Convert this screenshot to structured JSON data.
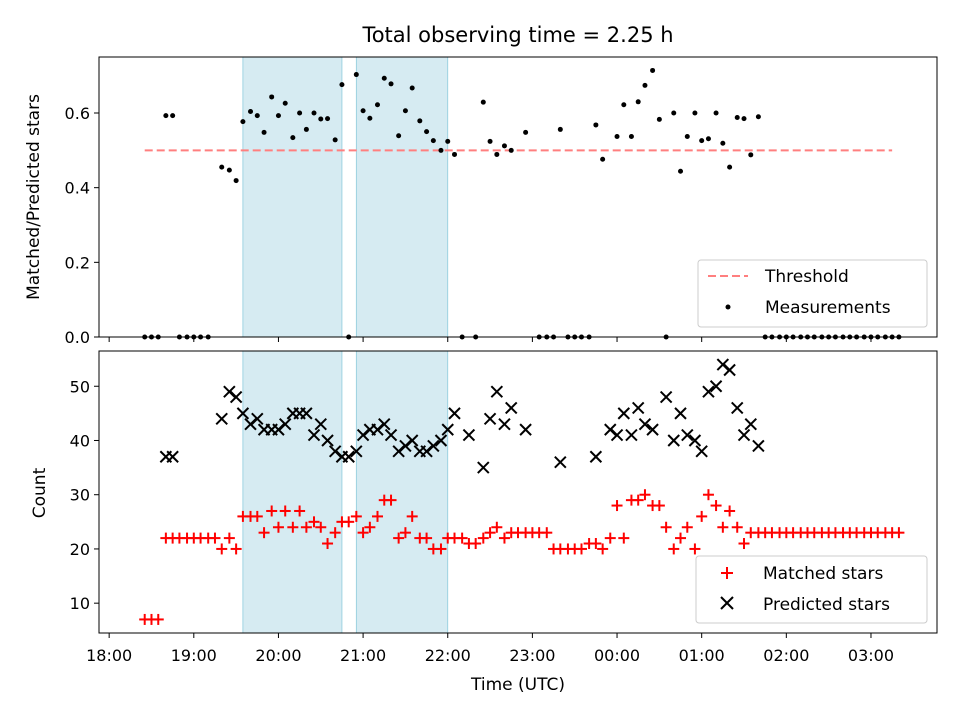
{
  "chart_data": [
    {
      "type": "scatter",
      "title": "Total observing time = 2.25 h",
      "ylabel": "Matched/Predicted stars",
      "xlabel": "",
      "xlim_hours": [
        17.88,
        27.78
      ],
      "ylim": [
        0,
        0.75
      ],
      "yticks": [
        0.0,
        0.2,
        0.4,
        0.6
      ],
      "ytick_labels": [
        "0.0",
        "0.2",
        "0.4",
        "0.6"
      ],
      "shaded_intervals": [
        [
          19.58,
          20.75
        ],
        [
          20.92,
          22.0
        ]
      ],
      "threshold": {
        "name": "Threshold",
        "y": 0.5,
        "x_from": 18.42,
        "x_to": 27.25,
        "color": "#ff7f7f"
      },
      "legend": {
        "position": "lower right",
        "entries": [
          "Threshold",
          "Measurements"
        ]
      },
      "series": [
        {
          "name": "Measurements",
          "color": "#000000",
          "x": [
            18.42,
            18.5,
            18.58,
            18.67,
            18.75,
            18.83,
            18.92,
            19.0,
            19.08,
            19.17,
            19.33,
            19.42,
            19.5,
            19.58,
            19.67,
            19.75,
            19.83,
            19.92,
            20.0,
            20.08,
            20.17,
            20.25,
            20.33,
            20.42,
            20.5,
            20.58,
            20.67,
            20.75,
            20.83,
            20.92,
            21.0,
            21.08,
            21.17,
            21.25,
            21.33,
            21.42,
            21.5,
            21.58,
            21.67,
            21.75,
            21.83,
            21.92,
            22.0,
            22.08,
            22.17,
            22.33,
            22.42,
            22.5,
            22.58,
            22.67,
            22.75,
            22.92,
            23.08,
            23.17,
            23.25,
            23.33,
            23.42,
            23.5,
            23.58,
            23.67,
            23.75,
            23.83,
            24.0,
            24.08,
            24.17,
            24.25,
            24.33,
            24.42,
            24.5,
            24.58,
            24.67,
            24.75,
            24.83,
            24.92,
            25.0,
            25.08,
            25.17,
            25.25,
            25.33,
            25.42,
            25.5,
            25.58,
            25.67,
            25.75,
            25.83,
            25.92,
            26.0,
            26.08,
            26.17,
            26.25,
            26.33,
            26.42,
            26.5,
            26.58,
            26.67,
            26.75,
            26.83,
            26.92,
            27.0,
            27.08,
            27.17,
            27.25,
            27.33
          ],
          "y": [
            0.0,
            0.0,
            0.0,
            0.593,
            0.593,
            0.0,
            0.0,
            0.0,
            0.0,
            0.0,
            0.455,
            0.447,
            0.419,
            0.577,
            0.604,
            0.593,
            0.548,
            0.643,
            0.593,
            0.626,
            0.534,
            0.6,
            0.556,
            0.6,
            0.584,
            0.585,
            0.528,
            0.676,
            0.0,
            0.703,
            0.606,
            0.586,
            0.622,
            0.693,
            0.678,
            0.539,
            0.606,
            0.667,
            0.579,
            0.55,
            0.526,
            0.5,
            0.524,
            0.489,
            0.0,
            0.0,
            0.629,
            0.524,
            0.489,
            0.512,
            0.5,
            0.548,
            0.0,
            0.0,
            0.0,
            0.556,
            0.0,
            0.0,
            0.0,
            0.0,
            0.568,
            0.476,
            0.537,
            0.622,
            0.537,
            0.63,
            0.674,
            0.714,
            0.583,
            0.0,
            0.6,
            0.444,
            0.537,
            0.6,
            0.526,
            0.531,
            0.6,
            0.519,
            0.455,
            0.588,
            0.585,
            0.488,
            0.59,
            0.0,
            0.0,
            0.0,
            0.0,
            0.0,
            0.0,
            0.0,
            0.0,
            0.0,
            0.0,
            0.0,
            0.0,
            0.0,
            0.0,
            0.0,
            0.0,
            0.0,
            0.0,
            0.0,
            0.0
          ]
        }
      ]
    },
    {
      "type": "scatter",
      "title": "",
      "xlabel": "Time (UTC)",
      "ylabel": "Count",
      "xlim_hours": [
        17.88,
        27.78
      ],
      "ylim": [
        4.5,
        56.5
      ],
      "yticks": [
        10,
        20,
        30,
        40,
        50
      ],
      "ytick_labels": [
        "10",
        "20",
        "30",
        "40",
        "50"
      ],
      "xticks_hours": [
        18,
        19,
        20,
        21,
        22,
        23,
        24,
        25,
        26,
        27
      ],
      "xtick_labels": [
        "18:00",
        "19:00",
        "20:00",
        "21:00",
        "22:00",
        "23:00",
        "00:00",
        "01:00",
        "02:00",
        "03:00"
      ],
      "shaded_intervals": [
        [
          19.58,
          20.75
        ],
        [
          20.92,
          22.0
        ]
      ],
      "legend": {
        "position": "lower right",
        "entries": [
          "Matched stars",
          "Predicted stars"
        ]
      },
      "series": [
        {
          "name": "Matched stars",
          "marker": "plus",
          "color": "#ff0000",
          "x": [
            18.42,
            18.5,
            18.58,
            18.67,
            18.75,
            18.83,
            18.92,
            19.0,
            19.08,
            19.17,
            19.25,
            19.33,
            19.42,
            19.5,
            19.58,
            19.67,
            19.75,
            19.83,
            19.92,
            20.0,
            20.08,
            20.17,
            20.25,
            20.33,
            20.42,
            20.5,
            20.58,
            20.67,
            20.75,
            20.83,
            20.92,
            21.0,
            21.08,
            21.17,
            21.25,
            21.33,
            21.42,
            21.5,
            21.58,
            21.67,
            21.75,
            21.83,
            21.92,
            22.0,
            22.08,
            22.17,
            22.25,
            22.33,
            22.42,
            22.5,
            22.58,
            22.67,
            22.75,
            22.83,
            22.92,
            23.0,
            23.08,
            23.17,
            23.25,
            23.33,
            23.42,
            23.5,
            23.58,
            23.67,
            23.75,
            23.83,
            23.92,
            24.0,
            24.08,
            24.17,
            24.25,
            24.33,
            24.42,
            24.5,
            24.58,
            24.67,
            24.75,
            24.83,
            24.92,
            25.0,
            25.08,
            25.17,
            25.25,
            25.33,
            25.42,
            25.5,
            25.58,
            25.67,
            25.75,
            25.83,
            25.92,
            26.0,
            26.08,
            26.17,
            26.25,
            26.33,
            26.42,
            26.5,
            26.58,
            26.67,
            26.75,
            26.83,
            26.92,
            27.0,
            27.08,
            27.17,
            27.25,
            27.33
          ],
          "y": [
            7,
            7,
            7,
            22,
            22,
            22,
            22,
            22,
            22,
            22,
            22,
            20,
            22,
            20,
            26,
            26,
            26,
            23,
            27,
            24,
            27,
            24,
            27,
            24,
            25,
            24,
            21,
            23,
            25,
            25,
            26,
            23,
            24,
            26,
            29,
            29,
            22,
            23,
            26,
            22,
            22,
            20,
            20,
            22,
            22,
            22,
            21,
            21,
            22,
            23,
            24,
            22,
            23,
            23,
            23,
            23,
            23,
            23,
            20,
            20,
            20,
            20,
            20,
            21,
            21,
            20,
            22,
            28,
            22,
            29,
            29,
            30,
            28,
            28,
            24,
            20,
            22,
            24,
            20,
            26,
            30,
            28,
            24,
            27,
            24,
            21,
            23,
            23,
            23,
            23,
            23,
            23,
            23,
            23,
            23,
            23,
            23,
            23,
            23,
            23,
            23,
            23,
            23,
            23,
            23,
            23,
            23,
            23
          ]
        },
        {
          "name": "Predicted stars",
          "marker": "x",
          "color": "#000000",
          "x": [
            18.67,
            18.75,
            19.33,
            19.42,
            19.5,
            19.58,
            19.67,
            19.75,
            19.83,
            19.92,
            20.0,
            20.08,
            20.17,
            20.25,
            20.33,
            20.42,
            20.5,
            20.58,
            20.67,
            20.75,
            20.83,
            20.92,
            21.0,
            21.08,
            21.17,
            21.25,
            21.33,
            21.42,
            21.5,
            21.58,
            21.67,
            21.75,
            21.83,
            21.92,
            22.0,
            22.08,
            22.25,
            22.42,
            22.5,
            22.58,
            22.67,
            22.75,
            22.92,
            23.33,
            23.75,
            23.92,
            24.0,
            24.08,
            24.17,
            24.25,
            24.33,
            24.42,
            24.58,
            24.67,
            24.75,
            24.83,
            24.92,
            25.0,
            25.08,
            25.17,
            25.25,
            25.33,
            25.42,
            25.5,
            25.58,
            25.67
          ],
          "y": [
            37,
            37,
            44,
            49,
            48,
            45,
            43,
            44,
            42,
            42,
            42,
            43,
            45,
            45,
            45,
            41,
            43,
            40,
            38,
            37,
            37,
            38,
            41,
            42,
            42,
            43,
            41,
            38,
            39,
            40,
            38,
            38,
            39,
            40,
            42,
            45,
            41,
            35,
            44,
            49,
            43,
            46,
            42,
            36,
            37,
            42,
            41,
            45,
            41,
            46,
            43,
            42,
            48,
            40,
            45,
            41,
            40,
            38,
            49,
            50,
            54,
            53,
            46,
            41,
            43,
            39
          ]
        }
      ]
    }
  ]
}
